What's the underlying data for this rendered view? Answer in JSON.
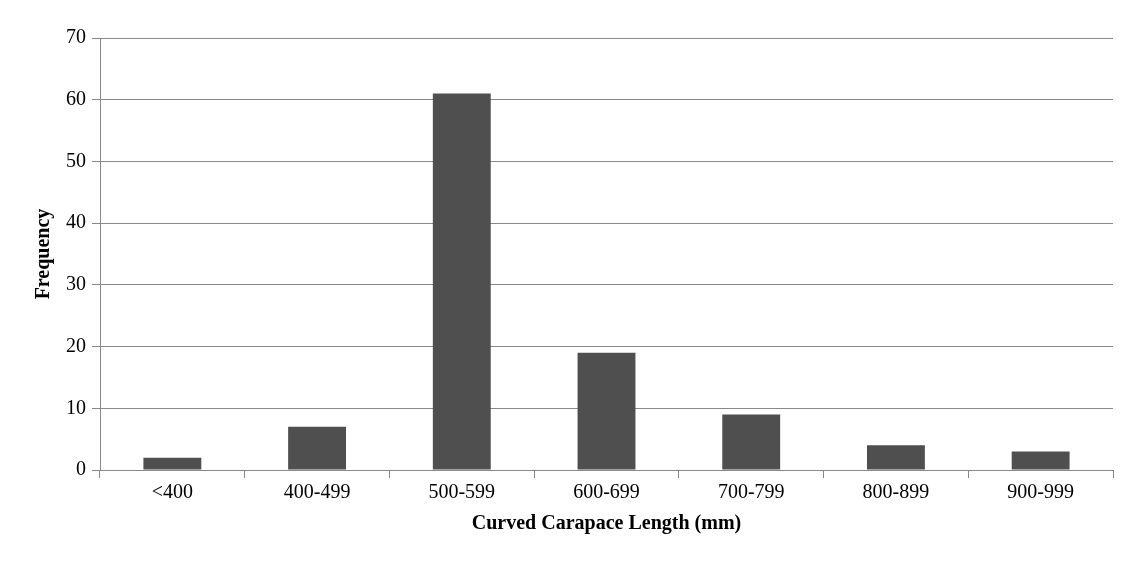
{
  "chart_data": {
    "type": "bar",
    "xlabel": "Curved Carapace Length (mm)",
    "ylabel": "Frequency",
    "categories": [
      "<400",
      "400-499",
      "500-599",
      "600-699",
      "700-799",
      "800-899",
      "900-999"
    ],
    "values": [
      2,
      7,
      61,
      19,
      9,
      4,
      3
    ],
    "color": "#4f4f4f",
    "ylim": [
      0,
      70
    ],
    "yticks": [
      0,
      10,
      20,
      30,
      40,
      50,
      60,
      70
    ],
    "grid": "y",
    "legend": false
  }
}
